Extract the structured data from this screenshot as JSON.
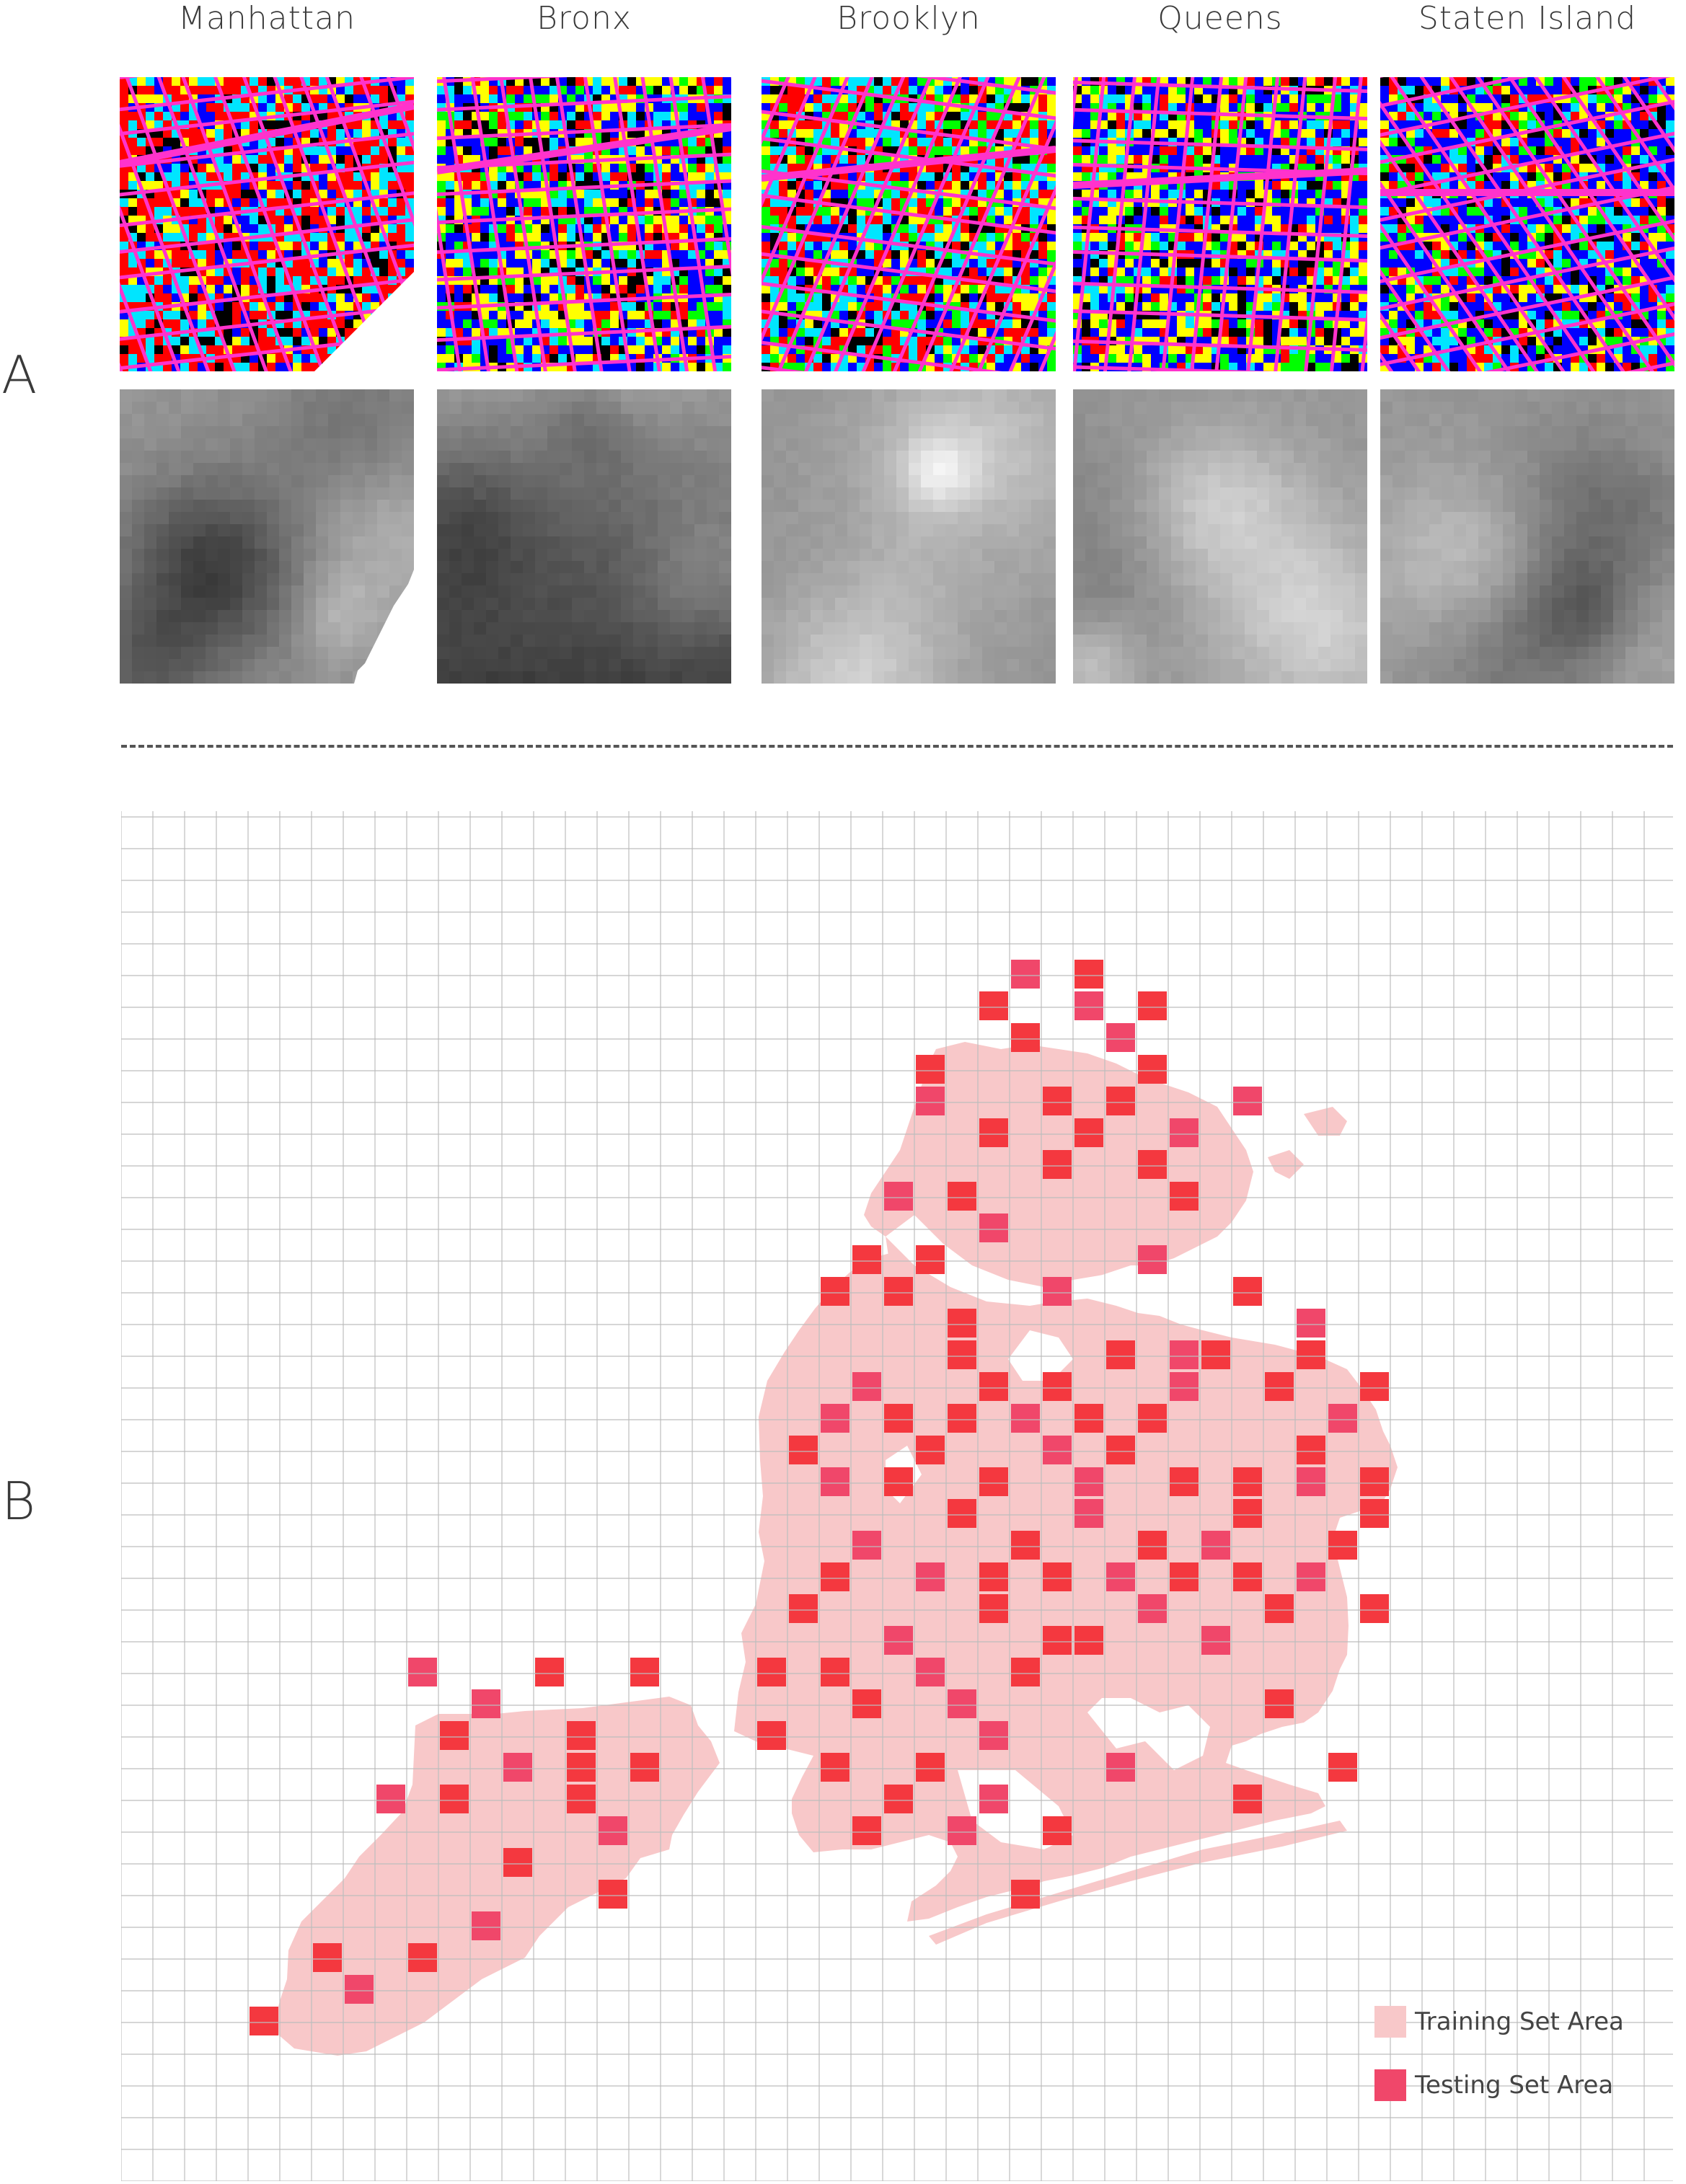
{
  "panels": {
    "a_label": "A",
    "b_label": "B"
  },
  "boroughs": [
    {
      "name": "Manhattan",
      "palette": "manhattan"
    },
    {
      "name": "Bronx",
      "palette": "bronx"
    },
    {
      "name": "Brooklyn",
      "palette": "brooklyn"
    },
    {
      "name": "Queens",
      "palette": "queens"
    },
    {
      "name": "Staten Island",
      "palette": "staten"
    }
  ],
  "landuse_colors": {
    "road": "#ff33cc",
    "residential_low": "#0000ff",
    "residential_high": "#00e5ff",
    "commercial": "#ff0000",
    "industrial": "#000000",
    "open_space": "#00ff00",
    "public": "#ffff00"
  },
  "map": {
    "grid_color": "#bdbdbd",
    "training_color": "#f8c8c9",
    "testing_color_a": "#f4383f",
    "testing_color_b": "#f0476a"
  },
  "legend": {
    "training_label": "Training Set Area",
    "testing_label": "Testing Set Area"
  }
}
